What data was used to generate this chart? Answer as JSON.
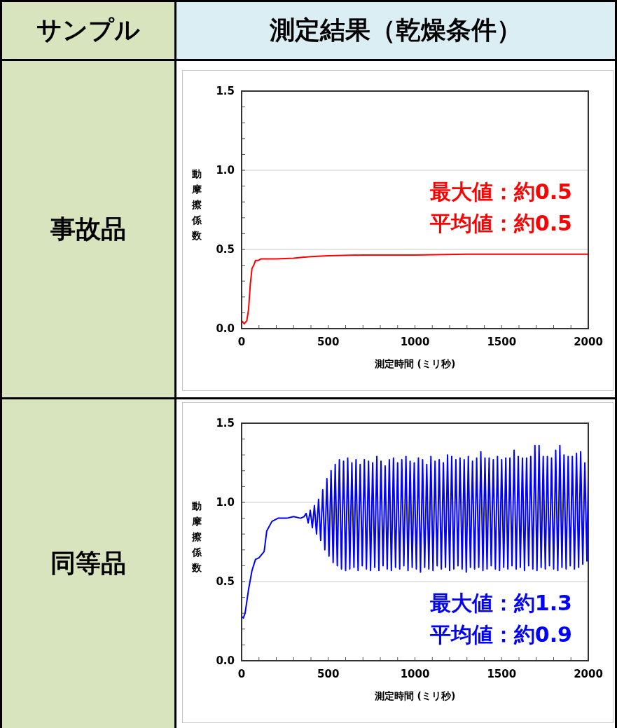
{
  "chart_data": [
    {
      "type": "line",
      "title": "事故品",
      "xlabel": "測定時間 (ミリ秒)",
      "ylabel": "動摩擦係数",
      "xlim": [
        0,
        2000
      ],
      "ylim": [
        0,
        1.5
      ],
      "xticks": [
        0,
        {
          "value": 100,
          "label": null
        },
        {
          "value": 200,
          "label": null
        },
        {
          "value": 300,
          "label": null
        },
        {
          "value": 400,
          "label": null
        },
        500,
        {
          "value": 600,
          "label": null
        },
        {
          "value": 700,
          "label": null
        },
        {
          "value": 800,
          "label": null
        },
        {
          "value": 900,
          "label": null
        },
        1000,
        {
          "value": 1100,
          "label": null
        },
        {
          "value": 1200,
          "label": null
        },
        {
          "value": 1300,
          "label": null
        },
        {
          "value": 1400,
          "label": null
        },
        1500,
        {
          "value": 1600,
          "label": null
        },
        {
          "value": 1700,
          "label": null
        },
        {
          "value": 1800,
          "label": null
        },
        {
          "value": 1900,
          "label": null
        },
        2000
      ],
      "yticks": [
        {
          "value": 0,
          "label": "0.0"
        },
        {
          "value": 0.1,
          "label": null
        },
        {
          "value": 0.2,
          "label": null
        },
        {
          "value": 0.3,
          "label": null
        },
        {
          "value": 0.4,
          "label": null
        },
        {
          "value": 0.5,
          "label": "0.5"
        },
        {
          "value": 0.6,
          "label": null
        },
        {
          "value": 0.7,
          "label": null
        },
        {
          "value": 0.8,
          "label": null
        },
        {
          "value": 0.9,
          "label": null
        },
        {
          "value": 1,
          "label": "1.0"
        },
        {
          "value": 1.1,
          "label": null
        },
        {
          "value": 1.2,
          "label": null
        },
        {
          "value": 1.3,
          "label": null
        },
        {
          "value": 1.4,
          "label": null
        },
        {
          "value": 1.5,
          "label": "1.5"
        }
      ],
      "grid": "y",
      "annotations": [
        "サンプル",
        "測定結果（乾燥条件）",
        "最大値：約0.5",
        "平均値：約0.5"
      ],
      "series": [
        {
          "color": "#ff0000",
          "x": [
            0,
            15,
            30,
            40,
            50,
            60,
            70,
            80,
            95,
            110,
            130,
            160,
            200,
            300,
            350,
            400,
            500,
            700,
            1000,
            1300,
            1600,
            2000
          ],
          "values": [
            0.05,
            0.03,
            0.05,
            0.12,
            0.28,
            0.38,
            0.4,
            0.43,
            0.43,
            0.44,
            0.44,
            0.44,
            0.44,
            0.445,
            0.45,
            0.455,
            0.46,
            0.465,
            0.465,
            0.47,
            0.47,
            0.47
          ]
        }
      ]
    },
    {
      "type": "line",
      "title": "同等品",
      "xlabel": "測定時間 (ミリ秒)",
      "ylabel": "動摩擦係数",
      "xlim": [
        0,
        2000
      ],
      "ylim": [
        0,
        1.5
      ],
      "xticks": [
        0,
        {
          "value": 100,
          "label": null
        },
        {
          "value": 200,
          "label": null
        },
        {
          "value": 300,
          "label": null
        },
        {
          "value": 400,
          "label": null
        },
        500,
        {
          "value": 600,
          "label": null
        },
        {
          "value": 700,
          "label": null
        },
        {
          "value": 800,
          "label": null
        },
        {
          "value": 900,
          "label": null
        },
        1000,
        {
          "value": 1100,
          "label": null
        },
        {
          "value": 1200,
          "label": null
        },
        {
          "value": 1300,
          "label": null
        },
        {
          "value": 1400,
          "label": null
        },
        1500,
        {
          "value": 1600,
          "label": null
        },
        {
          "value": 1700,
          "label": null
        },
        {
          "value": 1800,
          "label": null
        },
        {
          "value": 1900,
          "label": null
        },
        2000
      ],
      "yticks": [
        {
          "value": 0,
          "label": "0.0"
        },
        {
          "value": 0.1,
          "label": null
        },
        {
          "value": 0.2,
          "label": null
        },
        {
          "value": 0.3,
          "label": null
        },
        {
          "value": 0.4,
          "label": null
        },
        {
          "value": 0.5,
          "label": "0.5"
        },
        {
          "value": 0.6,
          "label": null
        },
        {
          "value": 0.7,
          "label": null
        },
        {
          "value": 0.8,
          "label": null
        },
        {
          "value": 0.9,
          "label": null
        },
        {
          "value": 1,
          "label": "1.0"
        },
        {
          "value": 1.1,
          "label": null
        },
        {
          "value": 1.2,
          "label": null
        },
        {
          "value": 1.3,
          "label": null
        },
        {
          "value": 1.4,
          "label": null
        },
        {
          "value": 1.5,
          "label": "1.5"
        }
      ],
      "grid": "y",
      "annotations": [
        "最大値：約1.3",
        "平均値：約0.9"
      ],
      "series": [
        {
          "color": "#0000ff",
          "x": [
            0,
            10,
            20,
            40,
            60,
            80,
            100,
            130,
            145,
            175,
            210,
            260,
            300,
            340,
            360,
            372,
            384,
            396,
            408,
            420,
            432,
            444,
            456,
            468,
            480,
            492,
            504,
            516,
            528,
            540,
            552,
            564,
            576,
            588,
            600,
            612,
            624,
            636,
            648,
            660,
            672,
            684,
            696,
            708,
            720,
            732,
            744,
            756,
            768,
            780,
            792,
            804,
            816,
            828,
            840,
            852,
            864,
            876,
            888,
            900,
            912,
            924,
            936,
            948,
            960,
            972,
            984,
            996,
            1008,
            1020,
            1032,
            1044,
            1056,
            1068,
            1080,
            1092,
            1104,
            1116,
            1128,
            1140,
            1152,
            1164,
            1176,
            1188,
            1200,
            1212,
            1224,
            1236,
            1248,
            1260,
            1272,
            1284,
            1296,
            1308,
            1320,
            1332,
            1344,
            1356,
            1368,
            1380,
            1392,
            1404,
            1416,
            1428,
            1440,
            1452,
            1464,
            1476,
            1488,
            1500,
            1512,
            1524,
            1536,
            1548,
            1560,
            1572,
            1584,
            1596,
            1608,
            1620,
            1632,
            1644,
            1656,
            1668,
            1680,
            1692,
            1704,
            1716,
            1728,
            1740,
            1752,
            1764,
            1776,
            1788,
            1800,
            1812,
            1824,
            1836,
            1848,
            1860,
            1872,
            1884,
            1896,
            1908,
            1920,
            1932,
            1944,
            1956,
            1968,
            1980,
            1992,
            2000
          ],
          "values": [
            0.28,
            0.27,
            0.3,
            0.45,
            0.57,
            0.64,
            0.65,
            0.69,
            0.82,
            0.88,
            0.9,
            0.9,
            0.91,
            0.9,
            0.91,
            0.93,
            0.87,
            0.95,
            0.84,
            0.98,
            0.8,
            1.02,
            0.76,
            1.08,
            0.7,
            1.15,
            0.66,
            1.2,
            0.62,
            1.24,
            0.6,
            1.27,
            0.58,
            1.26,
            0.57,
            1.28,
            0.58,
            1.25,
            0.59,
            1.27,
            0.57,
            1.24,
            0.6,
            1.27,
            0.58,
            1.26,
            0.57,
            1.25,
            0.59,
            1.29,
            0.57,
            1.26,
            0.6,
            1.23,
            0.58,
            1.27,
            0.57,
            1.28,
            0.59,
            1.25,
            0.58,
            1.27,
            0.6,
            1.29,
            0.57,
            1.26,
            0.59,
            1.25,
            0.58,
            1.28,
            0.56,
            1.27,
            0.59,
            1.24,
            0.58,
            1.29,
            0.57,
            1.26,
            0.6,
            1.27,
            0.58,
            1.25,
            0.59,
            1.3,
            0.57,
            1.29,
            0.58,
            1.27,
            0.6,
            1.28,
            0.58,
            1.27,
            0.56,
            1.29,
            0.59,
            1.26,
            0.58,
            1.28,
            0.59,
            1.32,
            0.57,
            1.28,
            0.58,
            1.28,
            0.6,
            1.27,
            0.58,
            1.29,
            0.57,
            1.27,
            0.59,
            1.28,
            0.58,
            1.28,
            0.6,
            1.33,
            0.58,
            1.29,
            0.59,
            1.28,
            0.57,
            1.28,
            0.6,
            1.29,
            0.58,
            1.36,
            0.57,
            1.36,
            0.59,
            1.29,
            0.58,
            1.29,
            0.6,
            1.28,
            0.58,
            1.33,
            0.57,
            1.36,
            0.59,
            1.3,
            0.58,
            1.29,
            0.6,
            1.29,
            0.58,
            1.31,
            0.59,
            1.32,
            0.61,
            1.25,
            0.63,
            1.17
          ]
        }
      ]
    }
  ]
}
